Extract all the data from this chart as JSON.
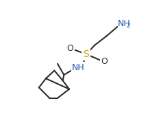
{
  "bg_color": "#ffffff",
  "line_color": "#2c2c2c",
  "atom_color_S": "#c8a000",
  "atom_color_N": "#2050b0",
  "atom_color_O": "#2c2c2c",
  "line_width": 1.5,
  "font_size_atom": 9.0,
  "font_size_sub": 6.5,
  "figsize": [
    2.38,
    1.95
  ],
  "dpi": 100,
  "xlim": [
    0,
    238
  ],
  "ylim": [
    0,
    195
  ]
}
